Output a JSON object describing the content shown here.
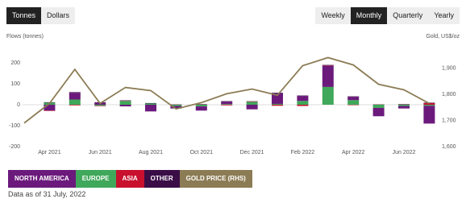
{
  "controls": {
    "units": [
      "Tonnes",
      "Dollars"
    ],
    "periods": [
      "Weekly",
      "Monthly",
      "Quarterly",
      "Yearly"
    ]
  },
  "chart_data": {
    "type": "bar",
    "stacked": true,
    "y_label": "Flows (tonnes)",
    "y2_label": "Gold, US$/oz",
    "categories": [
      null,
      "Apr 2021",
      null,
      "Jun 2021",
      null,
      "Aug 2021",
      null,
      "Oct 2021",
      null,
      "Dec 2021",
      null,
      "Feb 2022",
      null,
      "Apr 2022",
      null,
      "Jun 2022",
      null
    ],
    "series": [
      {
        "name": "NORTH AMERICA",
        "color": "#6b1a7c",
        "values": [
          null,
          -28,
          32,
          10,
          -8,
          -32,
          -12,
          -20,
          12,
          -22,
          50,
          24,
          100,
          16,
          -40,
          -12,
          -85
        ]
      },
      {
        "name": "EUROPE",
        "color": "#3fa85a",
        "values": [
          null,
          10,
          25,
          -5,
          18,
          6,
          -6,
          -8,
          3,
          14,
          4,
          18,
          85,
          22,
          -15,
          -6,
          -5
        ]
      },
      {
        "name": "ASIA",
        "color": "#c8102e",
        "values": [
          null,
          -2,
          -3,
          -2,
          1,
          0,
          1,
          1,
          -3,
          2,
          -5,
          -6,
          2,
          -2,
          1,
          1,
          8
        ]
      },
      {
        "name": "OTHER",
        "color": "#3a0d47",
        "values": [
          null,
          2,
          3,
          2,
          2,
          2,
          1,
          2,
          2,
          1,
          3,
          2,
          3,
          2,
          1,
          2,
          2
        ]
      },
      {
        "name": "GOLD PRICE (RHS)",
        "color": "#8c7c55",
        "type": "line",
        "axis": "y2",
        "values": [
          1690,
          1765,
          1895,
          1765,
          1826,
          1814,
          1744,
          1768,
          1802,
          1820,
          1796,
          1909,
          1940,
          1912,
          1838,
          1817,
          1765
        ]
      }
    ],
    "ylim": [
      -200,
      300
    ],
    "yticks": [
      -200,
      -100,
      0,
      100,
      200
    ],
    "y2lim": [
      1600,
      2000
    ],
    "y2ticks": [
      {
        "value": 1600,
        "label": "1,600"
      },
      {
        "value": 1700,
        "label": "1,700"
      },
      {
        "value": 1800,
        "label": "1,800"
      },
      {
        "value": 1900,
        "label": "1,900"
      }
    ],
    "grid": false
  },
  "footnote": "Data as of 31 July, 2022"
}
